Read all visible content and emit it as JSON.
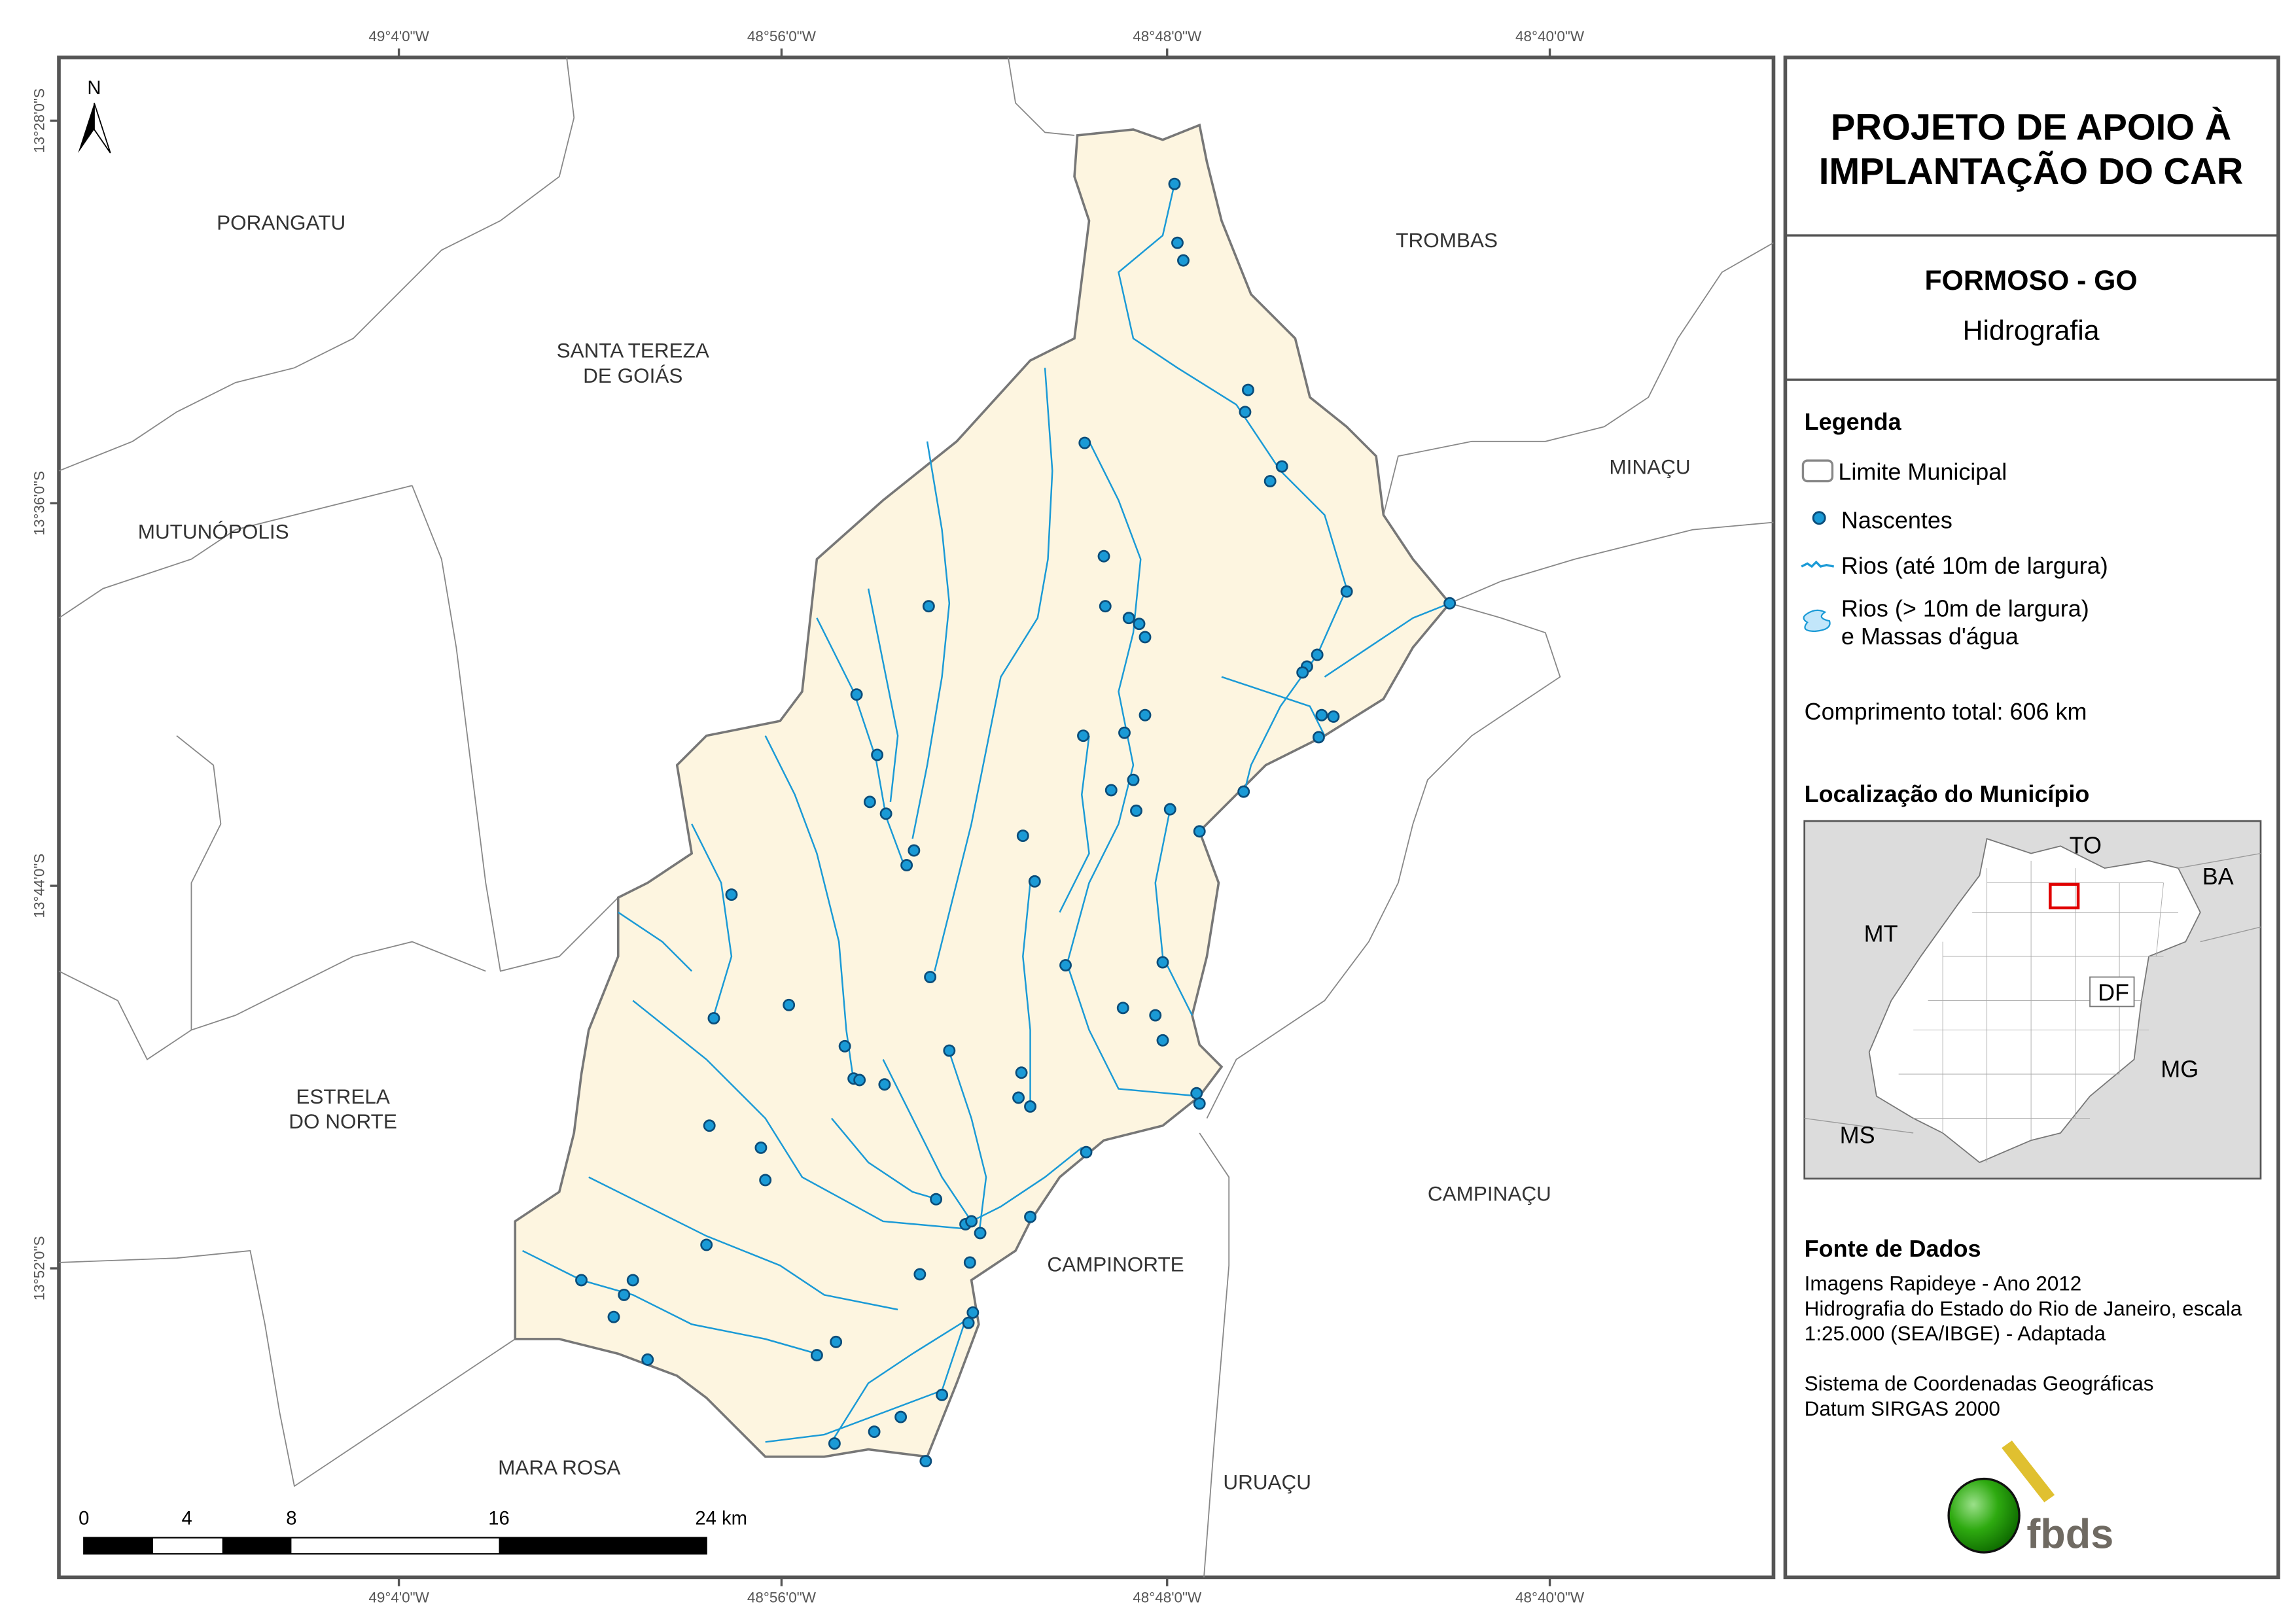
{
  "coordinates": {
    "top": [
      "49°4'0\"W",
      "48°56'0\"W",
      "48°48'0\"W",
      "48°40'0\"W"
    ],
    "bottom": [
      "49°4'0\"W",
      "48°56'0\"W",
      "48°48'0\"W",
      "48°40'0\"W"
    ],
    "left": [
      "13°28'0\"S",
      "13°36'0\"S",
      "13°44'0\"S",
      "13°52'0\"S"
    ]
  },
  "north_arrow": "N",
  "municipalities": {
    "porangatu": "PORANGATU",
    "trombas": "TROMBAS",
    "santa_tereza_1": "SANTA TEREZA",
    "santa_tereza_2": "DE GOIÁS",
    "minacu": "MINAÇU",
    "mutunopolis": "MUTUNÓPOLIS",
    "estrela_1": "ESTRELA",
    "estrela_2": "DO NORTE",
    "campinacu": "CAMPINAÇU",
    "campinorte": "CAMPINORTE",
    "mara_rosa": "MARA ROSA",
    "uruacu": "URUAÇU"
  },
  "scale_bar": {
    "ticks": [
      "0",
      "4",
      "8",
      "16",
      "24 km"
    ]
  },
  "panel": {
    "title_line1": "PROJETO DE APOIO À",
    "title_line2": "IMPLANTAÇÃO DO CAR",
    "municipality": "FORMOSO - GO",
    "theme": "Hidrografia",
    "legend": {
      "heading": "Legenda",
      "items": [
        "Limite Municipal",
        "Nascentes",
        "Rios (até 10m de largura)",
        "Rios (> 10m de largura)",
        "e Massas d'água"
      ],
      "total_length": "Comprimento total:  606 km"
    },
    "location": {
      "heading": "Localização do Município",
      "labels": [
        "TO",
        "BA",
        "MT",
        "DF",
        "MG",
        "MS"
      ]
    },
    "sources": {
      "heading": "Fonte de Dados",
      "lines": [
        "Imagens Rapideye - Ano 2012",
        "Hidrografia do Estado do Rio de Janeiro, escala",
        "1:25.000 (SEA/IBGE) - Adaptada",
        "",
        "Sistema de Coordenadas Geográficas",
        "Datum SIRGAS 2000"
      ]
    },
    "logo": "fbds"
  },
  "colors": {
    "municipality_fill": "#fdf5e0",
    "river": "#1a9ad6",
    "spring": "#1a9ad6",
    "spring_outline": "#0b4d7a",
    "boundary": "#777777",
    "frame": "#555555",
    "highlight": "#e00000"
  }
}
